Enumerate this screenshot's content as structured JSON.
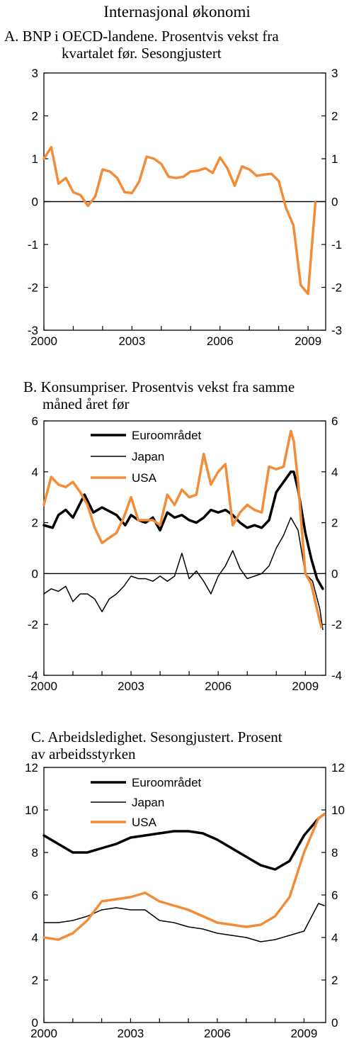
{
  "figure_title": "Internasjonal økonomi",
  "colors": {
    "euro": "#000000",
    "japan": "#000000",
    "usa": "#f28c38",
    "axis": "#000000"
  },
  "chart_data": [
    {
      "type": "line",
      "title": "A. BNP i OECD-landene. Prosentvis vekst fra kvartalet før. Sesongjustert",
      "title_lines": [
        "A. BNP i OECD-landene. Prosentvis vekst fra",
        "kvartalet før. Sesongjustert"
      ],
      "xlabel": "",
      "ylabel": "",
      "xlim": [
        2000,
        2009.6
      ],
      "ylim": [
        -3,
        3
      ],
      "yticks": [
        "-3",
        "-2",
        "-1",
        "0",
        "1",
        "2",
        "3"
      ],
      "xticks": [
        "2000",
        "2003",
        "2006",
        "2009"
      ],
      "grid": false,
      "legend": "",
      "series": [
        {
          "x": [
            2000.0,
            2000.25,
            2000.5,
            2000.75,
            2001.0,
            2001.25,
            2001.5,
            2001.75,
            2002.0,
            2002.25,
            2002.5,
            2002.75,
            2003.0,
            2003.25,
            2003.5,
            2003.75,
            2004.0,
            2004.25,
            2004.5,
            2004.75,
            2005.0,
            2005.25,
            2005.5,
            2005.75,
            2006.0,
            2006.25,
            2006.5,
            2006.75,
            2007.0,
            2007.25,
            2007.5,
            2007.75,
            2008.0,
            2008.25,
            2008.5,
            2008.75,
            2009.0,
            2009.25
          ],
          "values": [
            1.0,
            1.27,
            0.42,
            0.55,
            0.22,
            0.15,
            -0.1,
            0.12,
            0.75,
            0.7,
            0.55,
            0.22,
            0.2,
            0.47,
            1.05,
            1.0,
            0.88,
            0.58,
            0.55,
            0.58,
            0.7,
            0.72,
            0.78,
            0.67,
            1.03,
            0.78,
            0.37,
            0.82,
            0.75,
            0.6,
            0.63,
            0.65,
            0.48,
            -0.15,
            -0.55,
            -1.95,
            -2.15,
            -0.02
          ]
        }
      ]
    },
    {
      "type": "line",
      "title": "B. Konsumpriser. Prosentvis vekst fra samme måned året før",
      "title_lines": [
        "B. Konsumpriser. Prosentvis vekst fra samme",
        "måned året før"
      ],
      "xlabel": "",
      "ylabel": "",
      "xlim": [
        2000,
        2009.7
      ],
      "ylim": [
        -4,
        6
      ],
      "yticks": [
        "-4",
        "-2",
        "0",
        "2",
        "4",
        "6"
      ],
      "xticks": [
        "2000",
        "2003",
        "2006",
        "2009"
      ],
      "grid": false,
      "legend": "top-left",
      "series": [
        {
          "name": "Euroområdet",
          "key": "euro",
          "width": 3.5,
          "x": [
            2000.0,
            2000.3,
            2000.5,
            2000.75,
            2001.0,
            2001.4,
            2001.7,
            2002.0,
            2002.5,
            2002.8,
            2003.0,
            2003.25,
            2003.5,
            2003.75,
            2004.0,
            2004.25,
            2004.5,
            2004.75,
            2005.0,
            2005.25,
            2005.5,
            2005.75,
            2006.0,
            2006.25,
            2006.5,
            2006.75,
            2007.0,
            2007.25,
            2007.5,
            2007.75,
            2008.0,
            2008.25,
            2008.5,
            2008.6,
            2008.75,
            2009.0,
            2009.2,
            2009.4,
            2009.6
          ],
          "values": [
            1.9,
            1.8,
            2.3,
            2.5,
            2.2,
            3.1,
            2.4,
            2.6,
            2.3,
            1.9,
            2.3,
            2.1,
            2.0,
            2.2,
            1.7,
            2.4,
            2.2,
            2.3,
            2.1,
            2.0,
            2.2,
            2.5,
            2.4,
            2.5,
            2.3,
            2.0,
            1.8,
            1.9,
            1.8,
            2.1,
            3.2,
            3.6,
            4.0,
            4.0,
            3.3,
            1.6,
            0.6,
            -0.2,
            -0.6
          ]
        },
        {
          "name": "Japan",
          "key": "japan",
          "width": 1.5,
          "x": [
            2000.0,
            2000.25,
            2000.5,
            2000.75,
            2001.0,
            2001.25,
            2001.5,
            2001.75,
            2002.0,
            2002.25,
            2002.5,
            2002.75,
            2003.0,
            2003.25,
            2003.5,
            2003.75,
            2004.0,
            2004.25,
            2004.5,
            2004.75,
            2005.0,
            2005.25,
            2005.5,
            2005.75,
            2006.0,
            2006.25,
            2006.5,
            2006.75,
            2007.0,
            2007.25,
            2007.5,
            2007.75,
            2008.0,
            2008.25,
            2008.5,
            2008.75,
            2009.0,
            2009.25,
            2009.5,
            2009.6
          ],
          "values": [
            -0.8,
            -0.6,
            -0.7,
            -0.5,
            -1.1,
            -0.8,
            -0.8,
            -1.0,
            -1.5,
            -1.0,
            -0.8,
            -0.5,
            -0.1,
            -0.2,
            -0.2,
            -0.3,
            -0.1,
            -0.3,
            -0.1,
            0.8,
            -0.2,
            0.1,
            -0.3,
            -0.8,
            -0.1,
            0.3,
            0.9,
            0.2,
            -0.2,
            -0.1,
            0.0,
            0.3,
            1.0,
            1.5,
            2.2,
            1.7,
            0.0,
            -0.3,
            -1.4,
            -2.2
          ]
        },
        {
          "name": "USA",
          "key": "usa",
          "width": 3.5,
          "x": [
            2000.0,
            2000.25,
            2000.5,
            2000.75,
            2001.0,
            2001.25,
            2001.5,
            2001.75,
            2002.0,
            2002.25,
            2002.5,
            2002.75,
            2003.0,
            2003.25,
            2003.5,
            2003.75,
            2004.0,
            2004.25,
            2004.5,
            2004.75,
            2005.0,
            2005.25,
            2005.5,
            2005.75,
            2006.0,
            2006.25,
            2006.5,
            2006.75,
            2007.0,
            2007.25,
            2007.5,
            2007.75,
            2008.0,
            2008.25,
            2008.5,
            2008.6,
            2008.75,
            2009.0,
            2009.2,
            2009.4,
            2009.55
          ],
          "values": [
            2.7,
            3.8,
            3.5,
            3.4,
            3.6,
            3.2,
            2.7,
            1.8,
            1.2,
            1.4,
            1.6,
            2.2,
            3.0,
            2.1,
            2.1,
            2.1,
            1.9,
            3.1,
            2.7,
            3.3,
            3.0,
            3.1,
            4.7,
            3.5,
            4.0,
            4.3,
            1.9,
            2.4,
            2.7,
            2.5,
            2.4,
            4.2,
            4.1,
            4.2,
            5.6,
            5.2,
            3.6,
            0.0,
            -0.4,
            -1.4,
            -2.1
          ]
        }
      ]
    },
    {
      "type": "line",
      "title": "C. Arbeidsledighet. Sesongjustert. Prosent av arbeidsstyrken",
      "title_lines": [
        "C. Arbeidsledighet. Sesongjustert. Prosent",
        "av arbeidsstyrken"
      ],
      "xlabel": "",
      "ylabel": "",
      "xlim": [
        2000,
        2009.75
      ],
      "ylim": [
        0,
        12
      ],
      "yticks": [
        "0",
        "2",
        "4",
        "6",
        "8",
        "10",
        "12"
      ],
      "xticks": [
        "2000",
        "2003",
        "2006",
        "2009"
      ],
      "grid": false,
      "legend": "top-left",
      "series": [
        {
          "name": "Euroområdet",
          "key": "euro",
          "width": 3.5,
          "x": [
            2000.0,
            2000.5,
            2001.0,
            2001.5,
            2002.0,
            2002.5,
            2003.0,
            2003.5,
            2004.0,
            2004.5,
            2005.0,
            2005.5,
            2006.0,
            2006.5,
            2007.0,
            2007.5,
            2008.0,
            2008.5,
            2009.0,
            2009.5,
            2009.7
          ],
          "values": [
            8.8,
            8.4,
            8.0,
            8.0,
            8.2,
            8.4,
            8.7,
            8.8,
            8.9,
            9.0,
            9.0,
            8.9,
            8.6,
            8.2,
            7.8,
            7.4,
            7.2,
            7.6,
            8.8,
            9.6,
            9.8
          ]
        },
        {
          "name": "Japan",
          "key": "japan",
          "width": 1.5,
          "x": [
            2000.0,
            2000.5,
            2001.0,
            2001.5,
            2002.0,
            2002.5,
            2003.0,
            2003.5,
            2004.0,
            2004.5,
            2005.0,
            2005.5,
            2006.0,
            2006.5,
            2007.0,
            2007.5,
            2008.0,
            2008.5,
            2009.0,
            2009.5,
            2009.7
          ],
          "values": [
            4.7,
            4.7,
            4.8,
            5.0,
            5.3,
            5.4,
            5.3,
            5.3,
            4.8,
            4.7,
            4.5,
            4.4,
            4.2,
            4.1,
            4.0,
            3.8,
            3.9,
            4.1,
            4.3,
            5.6,
            5.5
          ]
        },
        {
          "name": "USA",
          "key": "usa",
          "width": 3.5,
          "x": [
            2000.0,
            2000.5,
            2001.0,
            2001.5,
            2002.0,
            2002.5,
            2003.0,
            2003.5,
            2004.0,
            2004.5,
            2005.0,
            2005.5,
            2006.0,
            2006.5,
            2007.0,
            2007.5,
            2008.0,
            2008.5,
            2009.0,
            2009.5,
            2009.7
          ],
          "values": [
            4.0,
            3.9,
            4.2,
            4.8,
            5.7,
            5.8,
            5.9,
            6.1,
            5.7,
            5.5,
            5.3,
            5.0,
            4.7,
            4.6,
            4.5,
            4.6,
            5.0,
            5.9,
            8.0,
            9.6,
            9.8
          ]
        }
      ]
    }
  ]
}
